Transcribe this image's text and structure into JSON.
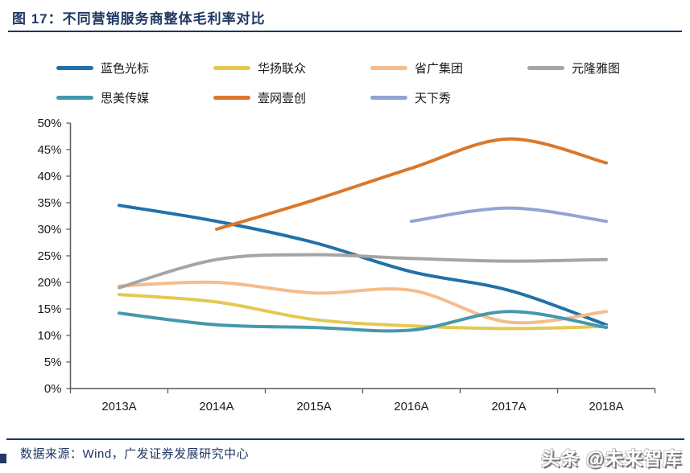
{
  "page": {
    "title": "图 17：不同营销服务商整体毛利率对比",
    "source": "数据来源：Wind，广发证券发展研究中心",
    "watermark": "头条 @未来智库"
  },
  "chart_data": {
    "type": "line",
    "title": "不同营销服务商整体毛利率对比",
    "categories": [
      "2013A",
      "2014A",
      "2015A",
      "2016A",
      "2017A",
      "2018A"
    ],
    "series": [
      {
        "name": "蓝色光标",
        "color": "#2171A9",
        "values": [
          34.5,
          31.5,
          27.5,
          22,
          18.5,
          12
        ]
      },
      {
        "name": "华扬联众",
        "color": "#E4C851",
        "values": [
          17.7,
          16.3,
          13,
          11.8,
          11.3,
          11.7
        ]
      },
      {
        "name": "省广集团",
        "color": "#F5BC8C",
        "values": [
          19.3,
          20,
          18,
          18.5,
          12.5,
          14.5
        ]
      },
      {
        "name": "元隆雅图",
        "color": "#A5A5A5",
        "values": [
          19,
          24.3,
          25.2,
          24.5,
          24,
          24.3
        ]
      },
      {
        "name": "思美传媒",
        "color": "#4598AC",
        "values": [
          14.2,
          12,
          11.5,
          11,
          14.5,
          11.5
        ]
      },
      {
        "name": "壹网壹创",
        "color": "#D9782D",
        "values": [
          null,
          30,
          35.5,
          41.5,
          47,
          42.5
        ]
      },
      {
        "name": "天下秀",
        "color": "#92A4D2",
        "values": [
          null,
          null,
          null,
          31.5,
          34,
          31.5
        ]
      }
    ],
    "ylim": [
      0,
      50
    ],
    "ytick_step": 5,
    "ytick_format": "percent",
    "xlabel": "",
    "ylabel": "",
    "grid": false,
    "legend_position": "top",
    "line_style": "smooth"
  }
}
